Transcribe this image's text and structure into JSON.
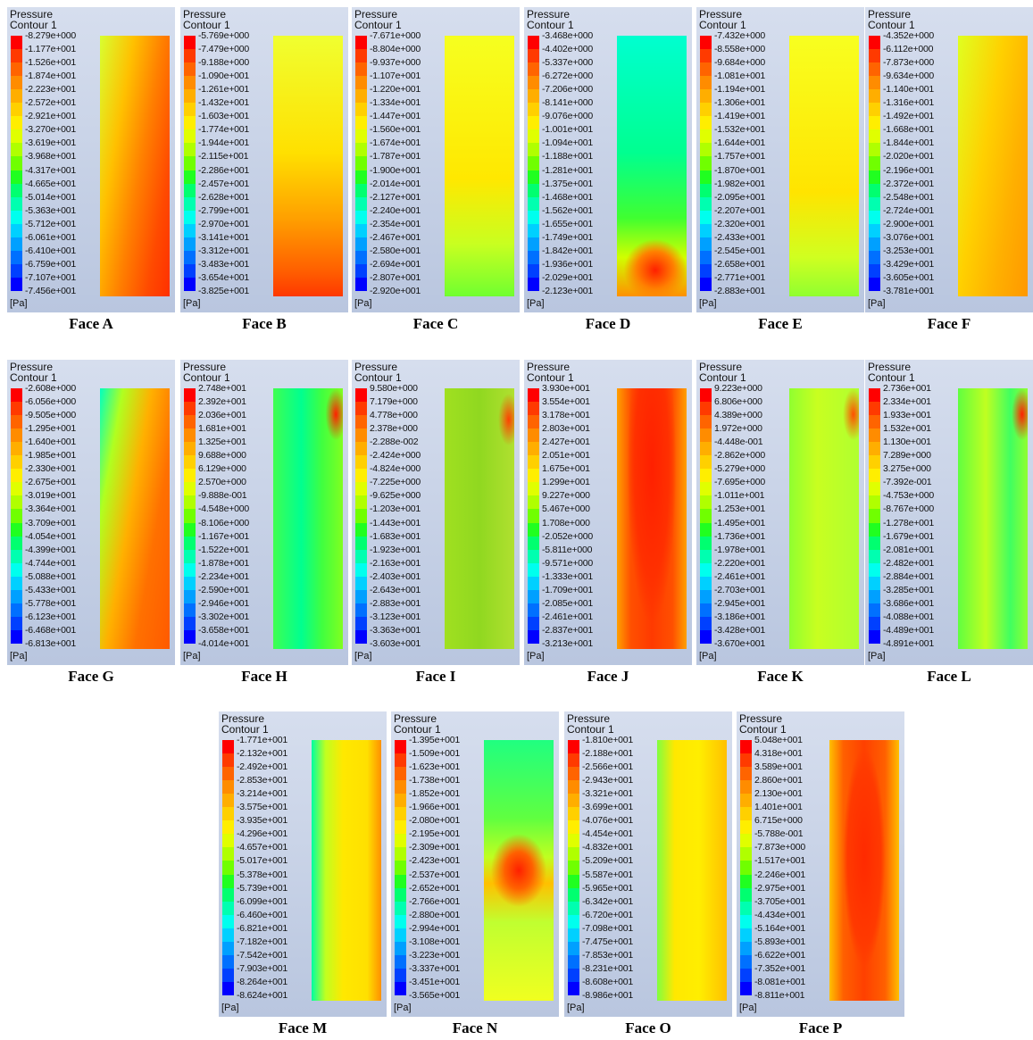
{
  "panels": [
    {
      "title": "Pressure",
      "subtitle": "Contour 1",
      "unit": "[Pa]",
      "caption": "Face A",
      "labels": [
        "-8.279e+000",
        "-1.177e+001",
        "-1.526e+001",
        "-1.874e+001",
        "-2.223e+001",
        "-2.572e+001",
        "-2.921e+001",
        "-3.270e+001",
        "-3.619e+001",
        "-3.968e+001",
        "-4.317e+001",
        "-4.665e+001",
        "-5.014e+001",
        "-5.363e+001",
        "-5.712e+001",
        "-6.061e+001",
        "-6.410e+001",
        "-6.759e+001",
        "-7.107e+001",
        "-7.456e+001"
      ]
    },
    {
      "title": "Pressure",
      "subtitle": "Contour 1",
      "unit": "[Pa]",
      "caption": "Face B",
      "labels": [
        "-5.769e+000",
        "-7.479e+000",
        "-9.188e+000",
        "-1.090e+001",
        "-1.261e+001",
        "-1.432e+001",
        "-1.603e+001",
        "-1.774e+001",
        "-1.944e+001",
        "-2.115e+001",
        "-2.286e+001",
        "-2.457e+001",
        "-2.628e+001",
        "-2.799e+001",
        "-2.970e+001",
        "-3.141e+001",
        "-3.312e+001",
        "-3.483e+001",
        "-3.654e+001",
        "-3.825e+001"
      ]
    },
    {
      "title": "Pressure",
      "subtitle": "Contour 1",
      "unit": "[Pa]",
      "caption": "Face C",
      "labels": [
        "-7.671e+000",
        "-8.804e+000",
        "-9.937e+000",
        "-1.107e+001",
        "-1.220e+001",
        "-1.334e+001",
        "-1.447e+001",
        "-1.560e+001",
        "-1.674e+001",
        "-1.787e+001",
        "-1.900e+001",
        "-2.014e+001",
        "-2.127e+001",
        "-2.240e+001",
        "-2.354e+001",
        "-2.467e+001",
        "-2.580e+001",
        "-2.694e+001",
        "-2.807e+001",
        "-2.920e+001"
      ]
    },
    {
      "title": "Pressure",
      "subtitle": "Contour 1",
      "unit": "[Pa]",
      "caption": "Face D",
      "labels": [
        "-3.468e+000",
        "-4.402e+000",
        "-5.337e+000",
        "-6.272e+000",
        "-7.206e+000",
        "-8.141e+000",
        "-9.076e+000",
        "-1.001e+001",
        "-1.094e+001",
        "-1.188e+001",
        "-1.281e+001",
        "-1.375e+001",
        "-1.468e+001",
        "-1.562e+001",
        "-1.655e+001",
        "-1.749e+001",
        "-1.842e+001",
        "-1.936e+001",
        "-2.029e+001",
        "-2.123e+001"
      ]
    },
    {
      "title": "Pressure",
      "subtitle": "Contour 1",
      "unit": "[Pa]",
      "caption": "Face E",
      "labels": [
        "-7.432e+000",
        "-8.558e+000",
        "-9.684e+000",
        "-1.081e+001",
        "-1.194e+001",
        "-1.306e+001",
        "-1.419e+001",
        "-1.532e+001",
        "-1.644e+001",
        "-1.757e+001",
        "-1.870e+001",
        "-1.982e+001",
        "-2.095e+001",
        "-2.207e+001",
        "-2.320e+001",
        "-2.433e+001",
        "-2.545e+001",
        "-2.658e+001",
        "-2.771e+001",
        "-2.883e+001"
      ]
    },
    {
      "title": "Pressure",
      "subtitle": "Contour 1",
      "unit": "[Pa]",
      "caption": "Face F",
      "labels": [
        "-4.352e+000",
        "-6.112e+000",
        "-7.873e+000",
        "-9.634e+000",
        "-1.140e+001",
        "-1.316e+001",
        "-1.492e+001",
        "-1.668e+001",
        "-1.844e+001",
        "-2.020e+001",
        "-2.196e+001",
        "-2.372e+001",
        "-2.548e+001",
        "-2.724e+001",
        "-2.900e+001",
        "-3.076e+001",
        "-3.253e+001",
        "-3.429e+001",
        "-3.605e+001",
        "-3.781e+001"
      ]
    },
    {
      "title": "Pressure",
      "subtitle": "Contour 1",
      "unit": "[Pa]",
      "caption": "Face G",
      "labels": [
        "-2.608e+000",
        "-6.056e+000",
        "-9.505e+000",
        "-1.295e+001",
        "-1.640e+001",
        "-1.985e+001",
        "-2.330e+001",
        "-2.675e+001",
        "-3.019e+001",
        "-3.364e+001",
        "-3.709e+001",
        "-4.054e+001",
        "-4.399e+001",
        "-4.744e+001",
        "-5.088e+001",
        "-5.433e+001",
        "-5.778e+001",
        "-6.123e+001",
        "-6.468e+001",
        "-6.813e+001"
      ]
    },
    {
      "title": "Pressure",
      "subtitle": "Contour 1",
      "unit": "[Pa]",
      "caption": "Face H",
      "labels": [
        "2.748e+001",
        "2.392e+001",
        "2.036e+001",
        "1.681e+001",
        "1.325e+001",
        "9.688e+000",
        "6.129e+000",
        "2.570e+000",
        "-9.888e-001",
        "-4.548e+000",
        "-8.106e+000",
        "-1.167e+001",
        "-1.522e+001",
        "-1.878e+001",
        "-2.234e+001",
        "-2.590e+001",
        "-2.946e+001",
        "-3.302e+001",
        "-3.658e+001",
        "-4.014e+001"
      ]
    },
    {
      "title": "Pressure",
      "subtitle": "Contour 1",
      "unit": "[Pa]",
      "caption": "Face I",
      "labels": [
        "9.580e+000",
        "7.179e+000",
        "4.778e+000",
        "2.378e+000",
        "-2.288e-002",
        "-2.424e+000",
        "-4.824e+000",
        "-7.225e+000",
        "-9.625e+000",
        "-1.203e+001",
        "-1.443e+001",
        "-1.683e+001",
        "-1.923e+001",
        "-2.163e+001",
        "-2.403e+001",
        "-2.643e+001",
        "-2.883e+001",
        "-3.123e+001",
        "-3.363e+001",
        "-3.603e+001"
      ]
    },
    {
      "title": "Pressure",
      "subtitle": "Contour 1",
      "unit": "[Pa]",
      "caption": "Face J",
      "labels": [
        "3.930e+001",
        "3.554e+001",
        "3.178e+001",
        "2.803e+001",
        "2.427e+001",
        "2.051e+001",
        "1.675e+001",
        "1.299e+001",
        "9.227e+000",
        "5.467e+000",
        "1.708e+000",
        "-2.052e+000",
        "-5.811e+000",
        "-9.571e+000",
        "-1.333e+001",
        "-1.709e+001",
        "-2.085e+001",
        "-2.461e+001",
        "-2.837e+001",
        "-3.213e+001"
      ]
    },
    {
      "title": "Pressure",
      "subtitle": "Contour 1",
      "unit": "[Pa]",
      "caption": "Face K",
      "labels": [
        "9.223e+000",
        "6.806e+000",
        "4.389e+000",
        "1.972e+000",
        "-4.448e-001",
        "-2.862e+000",
        "-5.279e+000",
        "-7.695e+000",
        "-1.011e+001",
        "-1.253e+001",
        "-1.495e+001",
        "-1.736e+001",
        "-1.978e+001",
        "-2.220e+001",
        "-2.461e+001",
        "-2.703e+001",
        "-2.945e+001",
        "-3.186e+001",
        "-3.428e+001",
        "-3.670e+001"
      ]
    },
    {
      "title": "Pressure",
      "subtitle": "Contour 1",
      "unit": "[Pa]",
      "caption": "Face L",
      "labels": [
        "2.736e+001",
        "2.334e+001",
        "1.933e+001",
        "1.532e+001",
        "1.130e+001",
        "7.289e+000",
        "3.275e+000",
        "-7.392e-001",
        "-4.753e+000",
        "-8.767e+000",
        "-1.278e+001",
        "-1.679e+001",
        "-2.081e+001",
        "-2.482e+001",
        "-2.884e+001",
        "-3.285e+001",
        "-3.686e+001",
        "-4.088e+001",
        "-4.489e+001",
        "-4.891e+001"
      ]
    },
    {
      "title": "Pressure",
      "subtitle": "Contour 1",
      "unit": "[Pa]",
      "caption": "Face M",
      "labels": [
        "-1.771e+001",
        "-2.132e+001",
        "-2.492e+001",
        "-2.853e+001",
        "-3.214e+001",
        "-3.575e+001",
        "-3.935e+001",
        "-4.296e+001",
        "-4.657e+001",
        "-5.017e+001",
        "-5.378e+001",
        "-5.739e+001",
        "-6.099e+001",
        "-6.460e+001",
        "-6.821e+001",
        "-7.182e+001",
        "-7.542e+001",
        "-7.903e+001",
        "-8.264e+001",
        "-8.624e+001"
      ]
    },
    {
      "title": "Pressure",
      "subtitle": "Contour 1",
      "unit": "[Pa]",
      "caption": "Face N",
      "labels": [
        "-1.395e+001",
        "-1.509e+001",
        "-1.623e+001",
        "-1.738e+001",
        "-1.852e+001",
        "-1.966e+001",
        "-2.080e+001",
        "-2.195e+001",
        "-2.309e+001",
        "-2.423e+001",
        "-2.537e+001",
        "-2.652e+001",
        "-2.766e+001",
        "-2.880e+001",
        "-2.994e+001",
        "-3.108e+001",
        "-3.223e+001",
        "-3.337e+001",
        "-3.451e+001",
        "-3.565e+001"
      ]
    },
    {
      "title": "Pressure",
      "subtitle": "Contour 1",
      "unit": "[Pa]",
      "caption": "Face O",
      "labels": [
        "-1.810e+001",
        "-2.188e+001",
        "-2.566e+001",
        "-2.943e+001",
        "-3.321e+001",
        "-3.699e+001",
        "-4.076e+001",
        "-4.454e+001",
        "-4.832e+001",
        "-5.209e+001",
        "-5.587e+001",
        "-5.965e+001",
        "-6.342e+001",
        "-6.720e+001",
        "-7.098e+001",
        "-7.475e+001",
        "-7.853e+001",
        "-8.231e+001",
        "-8.608e+001",
        "-8.986e+001"
      ]
    },
    {
      "title": "Pressure",
      "subtitle": "Contour 1",
      "unit": "[Pa]",
      "caption": "Face P",
      "labels": [
        "5.048e+001",
        "4.318e+001",
        "3.589e+001",
        "2.860e+001",
        "2.130e+001",
        "1.401e+001",
        "6.715e+000",
        "-5.788e-001",
        "-7.873e+000",
        "-1.517e+001",
        "-2.246e+001",
        "-2.975e+001",
        "-3.705e+001",
        "-4.434e+001",
        "-5.164e+001",
        "-5.893e+001",
        "-6.622e+001",
        "-7.352e+001",
        "-8.081e+001",
        "-8.811e+001"
      ]
    }
  ]
}
